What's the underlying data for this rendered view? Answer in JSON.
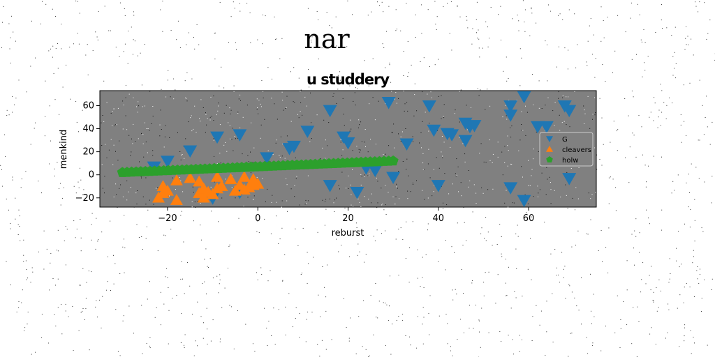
{
  "figure": {
    "suptitle": "nar"
  },
  "chart_data": {
    "type": "scatter",
    "title": "u studdery",
    "xlabel": "reburst",
    "ylabel": "menkind",
    "xlim": [
      -35,
      75
    ],
    "ylim": [
      -28,
      73
    ],
    "xticks": [
      -20,
      0,
      20,
      40,
      60
    ],
    "yticks": [
      -20,
      0,
      20,
      40,
      60
    ],
    "background": "#808080",
    "legend_position": "right",
    "series": [
      {
        "name": "G",
        "marker": "triangle-down",
        "color": "#1f77b4",
        "points": [
          [
            -23,
            7
          ],
          [
            -20,
            12
          ],
          [
            -15,
            21
          ],
          [
            -9,
            33
          ],
          [
            -4,
            35
          ],
          [
            2,
            15
          ],
          [
            7,
            23
          ],
          [
            8,
            25
          ],
          [
            11,
            38
          ],
          [
            16,
            56
          ],
          [
            19,
            33
          ],
          [
            20,
            28
          ],
          [
            29,
            63
          ],
          [
            33,
            27
          ],
          [
            38,
            60
          ],
          [
            39,
            39
          ],
          [
            42,
            36
          ],
          [
            43,
            35
          ],
          [
            46,
            45
          ],
          [
            46,
            30
          ],
          [
            47,
            42
          ],
          [
            48,
            43
          ],
          [
            56,
            60
          ],
          [
            56,
            52
          ],
          [
            59,
            68
          ],
          [
            62,
            42
          ],
          [
            64,
            42
          ],
          [
            68,
            60
          ],
          [
            69,
            56
          ],
          [
            70,
            28
          ],
          [
            16,
            -9
          ],
          [
            22,
            -15
          ],
          [
            24,
            6
          ],
          [
            26,
            4
          ],
          [
            30,
            -2
          ],
          [
            40,
            -9
          ],
          [
            56,
            -11
          ],
          [
            59,
            -22
          ],
          [
            69,
            -3
          ],
          [
            -10,
            -20
          ],
          [
            -4,
            -15
          ]
        ]
      },
      {
        "name": "cleavers",
        "marker": "triangle-up",
        "color": "#ff7f0e",
        "points": [
          [
            -21,
            -10
          ],
          [
            -21,
            -16
          ],
          [
            -22,
            -20
          ],
          [
            -20,
            -14
          ],
          [
            -18,
            -22
          ],
          [
            -18,
            -5
          ],
          [
            -15,
            -3
          ],
          [
            -13,
            -6
          ],
          [
            -13,
            -16
          ],
          [
            -12,
            -20
          ],
          [
            -12,
            -12
          ],
          [
            -11,
            -15
          ],
          [
            -10,
            -17
          ],
          [
            -9,
            -12
          ],
          [
            -9,
            -2
          ],
          [
            -8,
            -10
          ],
          [
            -6,
            -4
          ],
          [
            -5,
            -14
          ],
          [
            -4,
            -9
          ],
          [
            -3,
            -2
          ],
          [
            -3,
            -13
          ],
          [
            -2,
            -11
          ],
          [
            -1,
            -4
          ],
          [
            -1,
            -9
          ],
          [
            0,
            -8
          ]
        ]
      },
      {
        "name": "holw",
        "marker": "pentagon",
        "color": "#2ca02c",
        "line": {
          "x_start": -30,
          "x_end": 30,
          "y_start": 2,
          "y_end": 12,
          "count": 60
        }
      }
    ]
  }
}
